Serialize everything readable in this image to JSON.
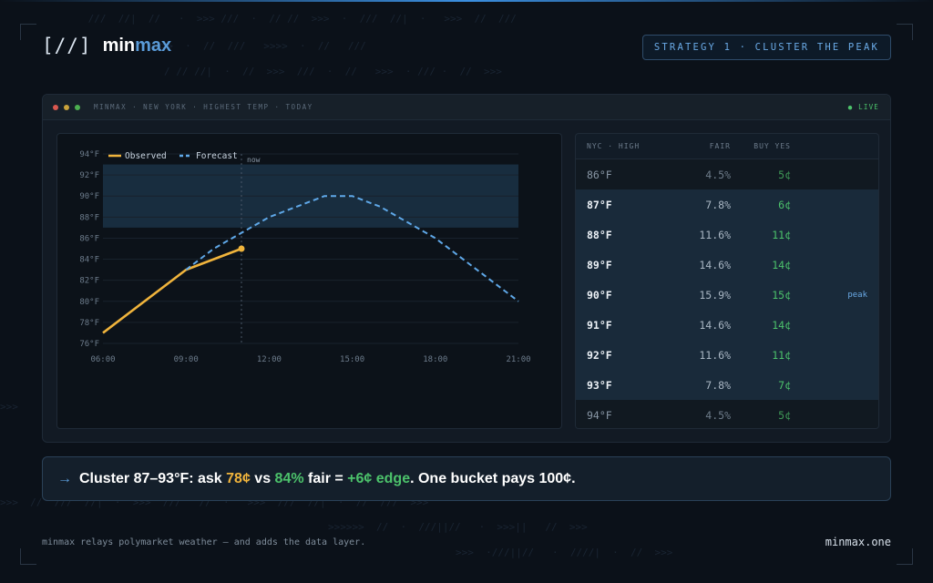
{
  "brand": {
    "mark": "[//]",
    "name_min": "min",
    "name_max": "max"
  },
  "strategy_badge": "STRATEGY 1 · CLUSTER THE PEAK",
  "window": {
    "title": "MINMAX · NEW YORK · HIGHEST TEMP · TODAY",
    "status": "● LIVE"
  },
  "chart_data": {
    "type": "line",
    "x_ticks": [
      "06:00",
      "09:00",
      "12:00",
      "15:00",
      "18:00",
      "21:00"
    ],
    "y_ticks": [
      "76°F",
      "78°F",
      "80°F",
      "82°F",
      "84°F",
      "86°F",
      "88°F",
      "90°F",
      "92°F",
      "94°F"
    ],
    "ylim": [
      76,
      94
    ],
    "xlim": [
      6,
      21
    ],
    "series": [
      {
        "name": "Observed",
        "style": "solid",
        "color": "#f0b43c",
        "x": [
          6,
          9,
          11
        ],
        "y": [
          77,
          83,
          85
        ]
      },
      {
        "name": "Forecast",
        "style": "dashed",
        "color": "#5fa8e8",
        "x": [
          9,
          10,
          11,
          12,
          14,
          15,
          16,
          18,
          21
        ],
        "y": [
          83,
          85,
          86.5,
          88,
          90,
          90,
          89,
          86,
          80
        ]
      }
    ],
    "band": {
      "from": 87,
      "to": 93
    },
    "now_line": {
      "x": 11,
      "label": "now"
    },
    "legend_position": "top-left"
  },
  "table": {
    "headers": {
      "bucket": "NYC · HIGH",
      "fair": "FAIR",
      "buy": "BUY YES"
    },
    "rows": [
      {
        "bucket": "86°F",
        "fair": "4.5%",
        "buy": "5¢",
        "tag": ""
      },
      {
        "bucket": "87°F",
        "fair": "7.8%",
        "buy": "6¢",
        "tag": ""
      },
      {
        "bucket": "88°F",
        "fair": "11.6%",
        "buy": "11¢",
        "tag": ""
      },
      {
        "bucket": "89°F",
        "fair": "14.6%",
        "buy": "14¢",
        "tag": ""
      },
      {
        "bucket": "90°F",
        "fair": "15.9%",
        "buy": "15¢",
        "tag": "peak"
      },
      {
        "bucket": "91°F",
        "fair": "14.6%",
        "buy": "14¢",
        "tag": ""
      },
      {
        "bucket": "92°F",
        "fair": "11.6%",
        "buy": "11¢",
        "tag": ""
      },
      {
        "bucket": "93°F",
        "fair": "7.8%",
        "buy": "7¢",
        "tag": ""
      },
      {
        "bucket": "94°F",
        "fair": "4.5%",
        "buy": "5¢",
        "tag": ""
      }
    ]
  },
  "callout": {
    "arrow": "→",
    "part1": "Cluster 87–93°F: ask ",
    "ask": "78¢",
    "part2": " vs ",
    "fair": "84%",
    "part3": " fair = ",
    "edge": "+6¢ edge",
    "part4": ". One bucket pays 100¢."
  },
  "footer": {
    "left": "minmax relays polymarket weather — and adds the data layer.",
    "right": "minmax.one"
  }
}
